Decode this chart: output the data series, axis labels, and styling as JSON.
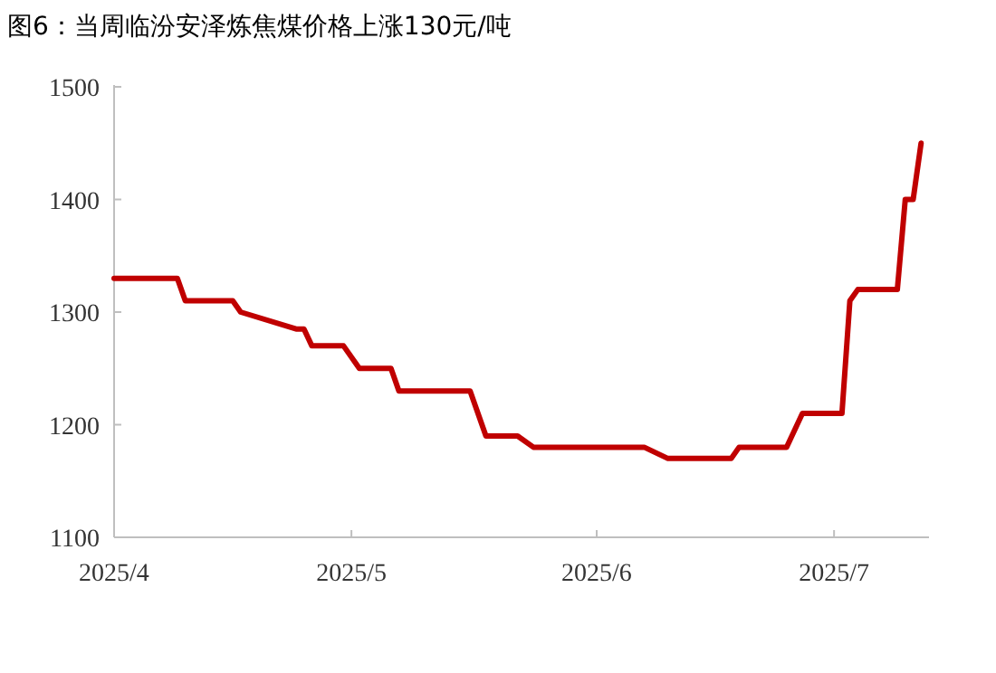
{
  "chart_data": {
    "type": "line",
    "title": "图6：当周临汾安泽炼焦煤价格上涨130元/吨",
    "x": [
      "2025-04-01",
      "2025-04-09",
      "2025-04-10",
      "2025-04-16",
      "2025-04-17",
      "2025-04-24",
      "2025-04-25",
      "2025-04-26",
      "2025-04-30",
      "2025-05-02",
      "2025-05-06",
      "2025-05-07",
      "2025-05-16",
      "2025-05-18",
      "2025-05-22",
      "2025-05-24",
      "2025-06-07",
      "2025-06-10",
      "2025-06-18",
      "2025-06-19",
      "2025-06-25",
      "2025-06-27",
      "2025-07-02",
      "2025-07-03",
      "2025-07-04",
      "2025-07-09",
      "2025-07-10",
      "2025-07-11",
      "2025-07-12"
    ],
    "series": [
      {
        "color": "#c00000",
        "values": [
          1330,
          1330,
          1310,
          1310,
          1300,
          1285,
          1285,
          1270,
          1270,
          1250,
          1250,
          1230,
          1230,
          1190,
          1190,
          1180,
          1180,
          1170,
          1170,
          1180,
          1180,
          1210,
          1210,
          1310,
          1320,
          1320,
          1400,
          1400,
          1450
        ]
      }
    ],
    "xlim": [
      "2025-04-01",
      "2025-07-13"
    ],
    "xticks": [
      {
        "value": "2025-04-01",
        "label": "2025/4"
      },
      {
        "value": "2025-05-01",
        "label": "2025/5"
      },
      {
        "value": "2025-06-01",
        "label": "2025/6"
      },
      {
        "value": "2025-07-01",
        "label": "2025/7"
      }
    ],
    "ylim": [
      1100,
      1500
    ],
    "yticks": [
      1100,
      1200,
      1300,
      1400,
      1500
    ],
    "grid": false,
    "marker": "none",
    "line_style": "solid"
  }
}
